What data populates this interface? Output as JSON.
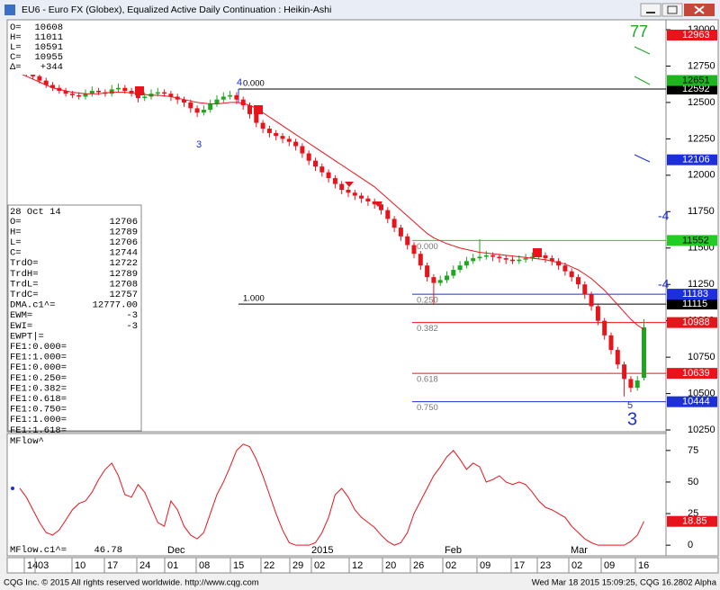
{
  "window": {
    "title": "EU6 - Euro FX (Globex), Equalized Active Daily Continuation : Heikin-Ashi"
  },
  "ohlc": [
    [
      "O=",
      "10608"
    ],
    [
      "H=",
      "11011"
    ],
    [
      "L=",
      "10591"
    ],
    [
      "C=",
      "10955"
    ],
    [
      "Δ=",
      "+344"
    ]
  ],
  "data_panel": {
    "date": "28 Oct 14",
    "rows": [
      [
        "O=",
        "12706"
      ],
      [
        "H=",
        "12789"
      ],
      [
        "L=",
        "12706"
      ],
      [
        "C=",
        "12744"
      ],
      [
        "TrdO=",
        "12722"
      ],
      [
        "TrdH=",
        "12789"
      ],
      [
        "TrdL=",
        "12708"
      ],
      [
        "TrdC=",
        "12757"
      ],
      [
        "DMA.c1^=",
        "12777.00"
      ],
      [
        "EWM=",
        "-3"
      ],
      [
        "EWI=",
        "-3"
      ],
      [
        "EWPT|="
      ],
      [
        "FE1:0.000="
      ],
      [
        "FE1:1.000="
      ],
      [
        "FE1:0.000="
      ],
      [
        "FE1:0.250="
      ],
      [
        "FE1:0.382="
      ],
      [
        "FE1:0.618="
      ],
      [
        "FE1:0.750="
      ],
      [
        "FE1:1.000="
      ],
      [
        "FE1:1.618="
      ]
    ]
  },
  "price_axis": {
    "ylim": [
      10238,
      13068
    ],
    "ticks": [
      13000,
      12750,
      12500,
      12250,
      12000,
      11750,
      11500,
      11250,
      11000,
      10750,
      10500,
      10250
    ]
  },
  "candles": [
    [
      12760,
      12790,
      12700,
      12730
    ],
    [
      12730,
      12750,
      12680,
      12700
    ],
    [
      12700,
      12720,
      12660,
      12680
    ],
    [
      12680,
      12700,
      12630,
      12650
    ],
    [
      12650,
      12670,
      12600,
      12620
    ],
    [
      12620,
      12640,
      12580,
      12600
    ],
    [
      12600,
      12620,
      12560,
      12580
    ],
    [
      12580,
      12600,
      12540,
      12560
    ],
    [
      12560,
      12580,
      12530,
      12550
    ],
    [
      12550,
      12570,
      12520,
      12540
    ],
    [
      12540,
      12590,
      12520,
      12560
    ],
    [
      12560,
      12610,
      12540,
      12580
    ],
    [
      12580,
      12600,
      12550,
      12570
    ],
    [
      12570,
      12590,
      12540,
      12560
    ],
    [
      12560,
      12620,
      12540,
      12590
    ],
    [
      12590,
      12630,
      12570,
      12600
    ],
    [
      12600,
      12620,
      12560,
      12580
    ],
    [
      12580,
      12600,
      12540,
      12560
    ],
    [
      12560,
      12580,
      12500,
      12530
    ],
    [
      12530,
      12570,
      12510,
      12540
    ],
    [
      12540,
      12590,
      12520,
      12560
    ],
    [
      12560,
      12600,
      12540,
      12570
    ],
    [
      12570,
      12590,
      12540,
      12560
    ],
    [
      12560,
      12580,
      12510,
      12540
    ],
    [
      12540,
      12560,
      12490,
      12520
    ],
    [
      12520,
      12540,
      12470,
      12500
    ],
    [
      12500,
      12520,
      12430,
      12460
    ],
    [
      12460,
      12480,
      12400,
      12430
    ],
    [
      12430,
      12480,
      12410,
      12450
    ],
    [
      12450,
      12520,
      12430,
      12490
    ],
    [
      12490,
      12550,
      12470,
      12520
    ],
    [
      12520,
      12570,
      12500,
      12540
    ],
    [
      12540,
      12580,
      12520,
      12550
    ],
    [
      12550,
      12570,
      12490,
      12520
    ],
    [
      12520,
      12540,
      12450,
      12480
    ],
    [
      12480,
      12500,
      12390,
      12420
    ],
    [
      12420,
      12440,
      12330,
      12360
    ],
    [
      12360,
      12380,
      12290,
      12320
    ],
    [
      12320,
      12340,
      12260,
      12290
    ],
    [
      12290,
      12310,
      12240,
      12270
    ],
    [
      12270,
      12290,
      12220,
      12250
    ],
    [
      12250,
      12270,
      12200,
      12230
    ],
    [
      12230,
      12250,
      12170,
      12200
    ],
    [
      12200,
      12220,
      12120,
      12150
    ],
    [
      12150,
      12170,
      12070,
      12100
    ],
    [
      12100,
      12120,
      12030,
      12060
    ],
    [
      12060,
      12080,
      11990,
      12020
    ],
    [
      12020,
      12040,
      11950,
      11980
    ],
    [
      11980,
      12000,
      11910,
      11940
    ],
    [
      11940,
      11960,
      11870,
      11900
    ],
    [
      11900,
      11920,
      11850,
      11880
    ],
    [
      11880,
      11900,
      11830,
      11860
    ],
    [
      11860,
      11880,
      11810,
      11840
    ],
    [
      11840,
      11860,
      11790,
      11820
    ],
    [
      11820,
      11840,
      11770,
      11800
    ],
    [
      11800,
      11820,
      11730,
      11760
    ],
    [
      11760,
      11780,
      11670,
      11700
    ],
    [
      11700,
      11720,
      11610,
      11640
    ],
    [
      11640,
      11660,
      11550,
      11580
    ],
    [
      11580,
      11600,
      11490,
      11520
    ],
    [
      11520,
      11540,
      11430,
      11460
    ],
    [
      11460,
      11480,
      11350,
      11380
    ],
    [
      11380,
      11400,
      11270,
      11300
    ],
    [
      11300,
      11320,
      11110,
      11260
    ],
    [
      11260,
      11310,
      11240,
      11280
    ],
    [
      11280,
      11340,
      11260,
      11310
    ],
    [
      11310,
      11380,
      11290,
      11350
    ],
    [
      11350,
      11410,
      11330,
      11380
    ],
    [
      11380,
      11440,
      11360,
      11410
    ],
    [
      11410,
      11460,
      11390,
      11430
    ],
    [
      11430,
      11560,
      11410,
      11440
    ],
    [
      11440,
      11480,
      11420,
      11450
    ],
    [
      11450,
      11470,
      11410,
      11440
    ],
    [
      11440,
      11460,
      11400,
      11430
    ],
    [
      11430,
      11450,
      11390,
      11420
    ],
    [
      11420,
      11440,
      11390,
      11410
    ],
    [
      11410,
      11450,
      11390,
      11420
    ],
    [
      11420,
      11460,
      11400,
      11430
    ],
    [
      11430,
      11470,
      11410,
      11440
    ],
    [
      11440,
      11480,
      11420,
      11450
    ],
    [
      11450,
      11470,
      11400,
      11430
    ],
    [
      11430,
      11450,
      11380,
      11410
    ],
    [
      11410,
      11430,
      11350,
      11380
    ],
    [
      11380,
      11400,
      11310,
      11340
    ],
    [
      11340,
      11360,
      11270,
      11300
    ],
    [
      11300,
      11320,
      11220,
      11250
    ],
    [
      11250,
      11270,
      11150,
      11180
    ],
    [
      11180,
      11200,
      11070,
      11100
    ],
    [
      11100,
      11120,
      10970,
      11000
    ],
    [
      11000,
      11020,
      10870,
      10900
    ],
    [
      10900,
      10920,
      10770,
      10800
    ],
    [
      10800,
      10820,
      10670,
      10700
    ],
    [
      10700,
      10720,
      10480,
      10600
    ],
    [
      10600,
      10620,
      10510,
      10540
    ],
    [
      10540,
      10620,
      10520,
      10590
    ],
    [
      10608,
      11011,
      10591,
      10955
    ]
  ],
  "ma": [
    12700,
    12680,
    12660,
    12640,
    12620,
    12600,
    12590,
    12580,
    12570,
    12565,
    12560,
    12560,
    12560,
    12565,
    12570,
    12570,
    12570,
    12565,
    12560,
    12555,
    12550,
    12550,
    12545,
    12540,
    12530,
    12520,
    12510,
    12500,
    12495,
    12490,
    12490,
    12495,
    12500,
    12500,
    12495,
    12480,
    12460,
    12430,
    12400,
    12370,
    12340,
    12310,
    12280,
    12250,
    12220,
    12190,
    12160,
    12130,
    12100,
    12070,
    12040,
    12010,
    11980,
    11950,
    11920,
    11880,
    11840,
    11800,
    11760,
    11720,
    11680,
    11640,
    11600,
    11570,
    11550,
    11530,
    11515,
    11500,
    11490,
    11480,
    11470,
    11465,
    11460,
    11455,
    11450,
    11445,
    11440,
    11435,
    11430,
    11425,
    11420,
    11410,
    11400,
    11390,
    11370,
    11350,
    11320,
    11290,
    11250,
    11210,
    11160,
    11110,
    11060,
    11010,
    10970,
    10940
  ],
  "axis_tags": [
    {
      "value": 12963,
      "color": "#e8141c",
      "text_color": "#ffffff"
    },
    {
      "value": 12651,
      "color": "#1fb51f",
      "text_color": "#000000"
    },
    {
      "value": 12106,
      "color": "#1c2fd8",
      "text_color": "#ffffff"
    }
  ],
  "fib_levels": [
    {
      "label": "0.000",
      "price": 12592,
      "color": "#000000",
      "text_color": "#ffffff"
    },
    {
      "label": "1.000",
      "price": 11115,
      "color": "#000000",
      "text_color": "#ffffff"
    },
    {
      "label": "0.000",
      "price": 11552,
      "color": "#22cc22",
      "text_color": "#000000"
    },
    {
      "label": "0.250",
      "price": 11183,
      "color": "#1c2fd8",
      "text_color": "#ffffff"
    },
    {
      "label": "0.382",
      "price": 10988,
      "color": "#e8141c",
      "text_color": "#ffffff"
    },
    {
      "label": "0.618",
      "price": 10639,
      "color": "#e8141c",
      "text_color": "#ffffff"
    },
    {
      "label": "0.750",
      "price": 10444,
      "color": "#1c2fd8",
      "text_color": "#ffffff"
    }
  ],
  "annotations": {
    "top_count": "77",
    "waves": [
      "4",
      "3",
      "5",
      "3"
    ],
    "edge": [
      "-4",
      "-4"
    ]
  },
  "indicator": {
    "name": "MFlow^",
    "readout_label": "MFlow.c1^=",
    "readout_value": "46.78",
    "ylim": [
      -7,
      87
    ],
    "ticks": [
      75,
      50,
      25,
      0
    ],
    "values": [
      45,
      38,
      28,
      18,
      10,
      8,
      12,
      20,
      28,
      33,
      35,
      42,
      52,
      60,
      65,
      55,
      40,
      38,
      48,
      42,
      30,
      18,
      15,
      35,
      28,
      15,
      8,
      5,
      10,
      25,
      40,
      50,
      62,
      75,
      80,
      78,
      68,
      55,
      40,
      25,
      12,
      2,
      0,
      0,
      0,
      2,
      10,
      22,
      40,
      45,
      38,
      28,
      22,
      18,
      14,
      8,
      3,
      0,
      2,
      10,
      25,
      35,
      45,
      55,
      62,
      70,
      75,
      68,
      60,
      65,
      62,
      50,
      52,
      55,
      50,
      48,
      50,
      48,
      42,
      35,
      30,
      28,
      25,
      22,
      15,
      10,
      5,
      2,
      0,
      0,
      0,
      0,
      0,
      3,
      8,
      18.85
    ]
  },
  "months": [
    "Dec",
    "2015",
    "Feb",
    "Mar"
  ],
  "dates": [
    "14",
    "03",
    "10",
    "17",
    "24",
    "01",
    "08",
    "15",
    "22",
    "29",
    "02",
    "12",
    "20",
    "26",
    "02",
    "09",
    "17",
    "23",
    "02",
    "09",
    "16"
  ],
  "footer": {
    "left": "CQG Inc. © 2015 All rights reserved worldwide. http://www.cqg.com",
    "right": "Wed Mar 18 2015 15:09:25, CQG 16.2802 Alpha"
  }
}
